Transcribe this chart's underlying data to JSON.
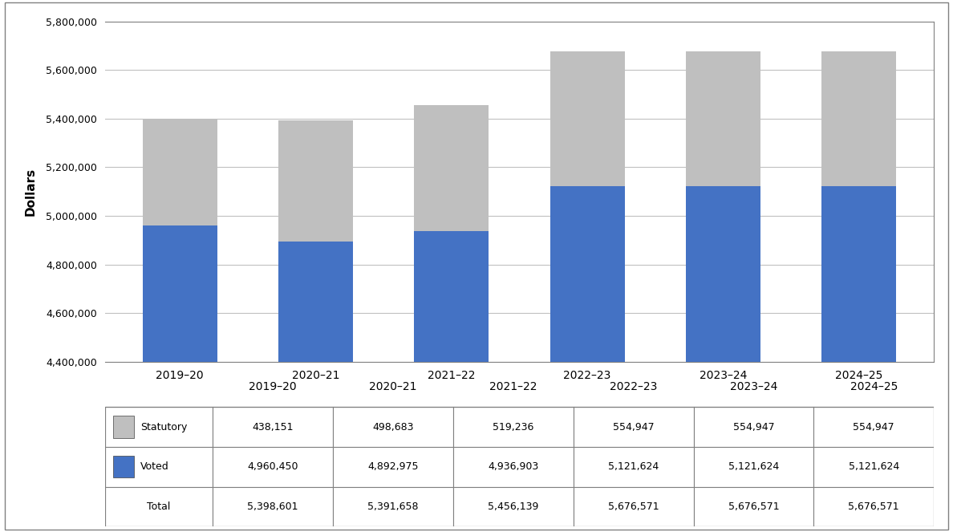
{
  "categories": [
    "2019–20",
    "2020–21",
    "2021–22",
    "2022–23",
    "2023–24",
    "2024–25"
  ],
  "statutory": [
    438151,
    498683,
    519236,
    554947,
    554947,
    554947
  ],
  "voted": [
    4960450,
    4892975,
    4936903,
    5121624,
    5121624,
    5121624
  ],
  "totals": [
    5398601,
    5391658,
    5456139,
    5676571,
    5676571,
    5676571
  ],
  "statutory_color": "#bfbfbf",
  "voted_color": "#4472c4",
  "ylabel": "Dollars",
  "ylim_min": 4400000,
  "ylim_max": 5800000,
  "yticks": [
    4400000,
    4600000,
    4800000,
    5000000,
    5200000,
    5400000,
    5600000,
    5800000
  ],
  "background_color": "#ffffff",
  "plot_background": "#ffffff",
  "grid_color": "#c0c0c0",
  "statutory_legend": "Statutory",
  "voted_legend": "Voted",
  "bar_width": 0.55
}
